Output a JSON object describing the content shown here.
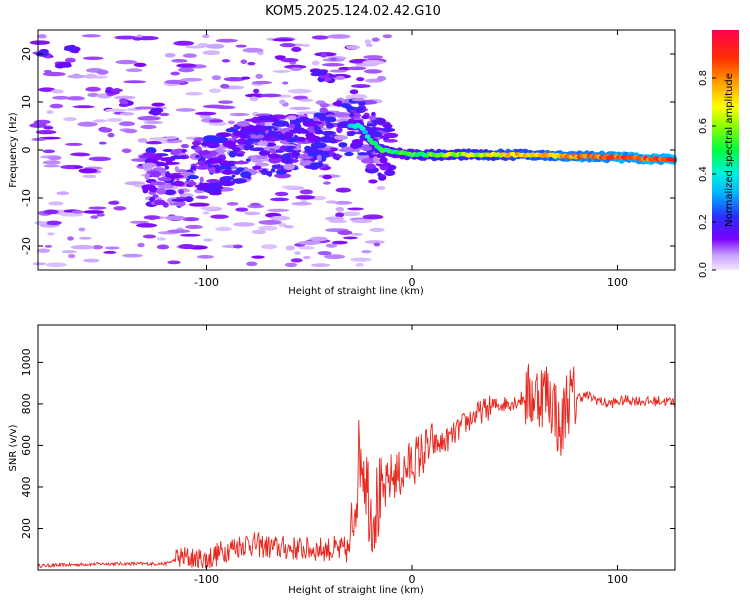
{
  "title": "KOM5.2025.124.02.42.G10",
  "chart_data": [
    {
      "type": "heatmap",
      "xlabel": "Height of straight line (km)",
      "ylabel": "Frequency (Hz)",
      "xlim": [
        -182,
        128
      ],
      "ylim": [
        -25,
        25
      ],
      "xticks": [
        "-100",
        "0",
        "100"
      ],
      "xtick_values": [
        -100,
        0,
        100
      ],
      "yticks": [
        "-20",
        "-10",
        "0",
        "10",
        "20"
      ],
      "ytick_values": [
        -20,
        -10,
        0,
        10,
        20
      ],
      "colorbar": {
        "label": "Normalized spectral amplitude",
        "ticks": [
          "0.0",
          "0.2",
          "0.4",
          "0.6",
          "0.8"
        ],
        "tick_values": [
          0.0,
          0.2,
          0.4,
          0.6,
          0.8
        ],
        "range": [
          0,
          1
        ]
      },
      "ridge": [
        {
          "x": -110,
          "f": -6
        },
        {
          "x": -100,
          "f": -4
        },
        {
          "x": -90,
          "f": -2
        },
        {
          "x": -80,
          "f": 0
        },
        {
          "x": -70,
          "f": 1
        },
        {
          "x": -60,
          "f": 1
        },
        {
          "x": -50,
          "f": 2
        },
        {
          "x": -40,
          "f": 4
        },
        {
          "x": -30,
          "f": 5
        },
        {
          "x": -25,
          "f": 5
        },
        {
          "x": -20,
          "f": 2
        },
        {
          "x": -15,
          "f": 0
        },
        {
          "x": 0,
          "f": -1
        },
        {
          "x": 50,
          "f": -1
        },
        {
          "x": 100,
          "f": -1.5
        },
        {
          "x": 125,
          "f": -2
        }
      ],
      "ridge_amplitude": [
        {
          "x": -100,
          "a": 0.15
        },
        {
          "x": -40,
          "a": 0.3
        },
        {
          "x": -30,
          "a": 0.4
        },
        {
          "x": 0,
          "a": 0.5
        },
        {
          "x": 50,
          "a": 0.7
        },
        {
          "x": 100,
          "a": 0.85
        },
        {
          "x": 125,
          "a": 0.9
        }
      ]
    },
    {
      "type": "line",
      "xlabel": "Height of straight line (km)",
      "ylabel": "SNR (v/v)",
      "xlim": [
        -182,
        128
      ],
      "ylim": [
        0,
        1180
      ],
      "xticks": [
        "-100",
        "0",
        "100"
      ],
      "xtick_values": [
        -100,
        0,
        100
      ],
      "yticks": [
        "200",
        "400",
        "600",
        "800",
        "1000"
      ],
      "ytick_values": [
        200,
        400,
        600,
        800,
        1000
      ],
      "color": "#e8271f",
      "series": [
        {
          "x": [
            -182,
            -150,
            -120,
            -112,
            -100,
            -90,
            -80,
            -70,
            -60,
            -50,
            -40,
            -35,
            -30,
            -28,
            -25,
            -22,
            -20,
            -15,
            -10,
            -5,
            0,
            5,
            10,
            15,
            20,
            25,
            30,
            35,
            40,
            45,
            50,
            55,
            60,
            65,
            70,
            72,
            75,
            80,
            85,
            90,
            95,
            100,
            105,
            110,
            115,
            120,
            128
          ],
          "y": [
            20,
            30,
            30,
            60,
            50,
            100,
            130,
            110,
            105,
            100,
            100,
            90,
            100,
            330,
            600,
            430,
            280,
            340,
            450,
            460,
            520,
            560,
            600,
            610,
            650,
            700,
            740,
            770,
            790,
            800,
            810,
            830,
            840,
            860,
            780,
            620,
            820,
            830,
            840,
            820,
            800,
            810,
            820,
            815,
            810,
            815,
            810
          ]
        }
      ]
    }
  ]
}
